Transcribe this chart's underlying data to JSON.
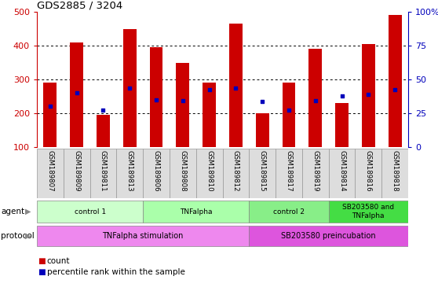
{
  "title": "GDS2885 / 3204",
  "samples": [
    "GSM189807",
    "GSM189809",
    "GSM189811",
    "GSM189813",
    "GSM189806",
    "GSM189808",
    "GSM189810",
    "GSM189812",
    "GSM189815",
    "GSM189817",
    "GSM189819",
    "GSM189814",
    "GSM189816",
    "GSM189818"
  ],
  "counts": [
    290,
    410,
    195,
    450,
    395,
    350,
    290,
    465,
    200,
    290,
    390,
    230,
    405,
    490
  ],
  "percentile_values": [
    220,
    260,
    210,
    275,
    240,
    237,
    270,
    275,
    235,
    210,
    237,
    252,
    255,
    270
  ],
  "ylim": [
    100,
    500
  ],
  "y_ticks": [
    100,
    200,
    300,
    400,
    500
  ],
  "right_yticks": [
    0,
    25,
    50,
    75,
    100
  ],
  "right_ylim": [
    0,
    100
  ],
  "bar_color": "#cc0000",
  "dot_color": "#0000bb",
  "bar_width": 0.5,
  "agent_groups": [
    {
      "label": "control 1",
      "start": 0,
      "end": 3,
      "color": "#ccffcc"
    },
    {
      "label": "TNFalpha",
      "start": 4,
      "end": 7,
      "color": "#aaffaa"
    },
    {
      "label": "control 2",
      "start": 8,
      "end": 10,
      "color": "#88ee88"
    },
    {
      "label": "SB203580 and\nTNFalpha",
      "start": 11,
      "end": 13,
      "color": "#44dd44"
    }
  ],
  "protocol_groups": [
    {
      "label": "TNFalpha stimulation",
      "start": 0,
      "end": 7,
      "color": "#ee88ee"
    },
    {
      "label": "SB203580 preincubation",
      "start": 8,
      "end": 13,
      "color": "#dd55dd"
    }
  ],
  "left_axis_color": "#cc0000",
  "right_axis_color": "#0000bb",
  "grid_color": "#000000"
}
